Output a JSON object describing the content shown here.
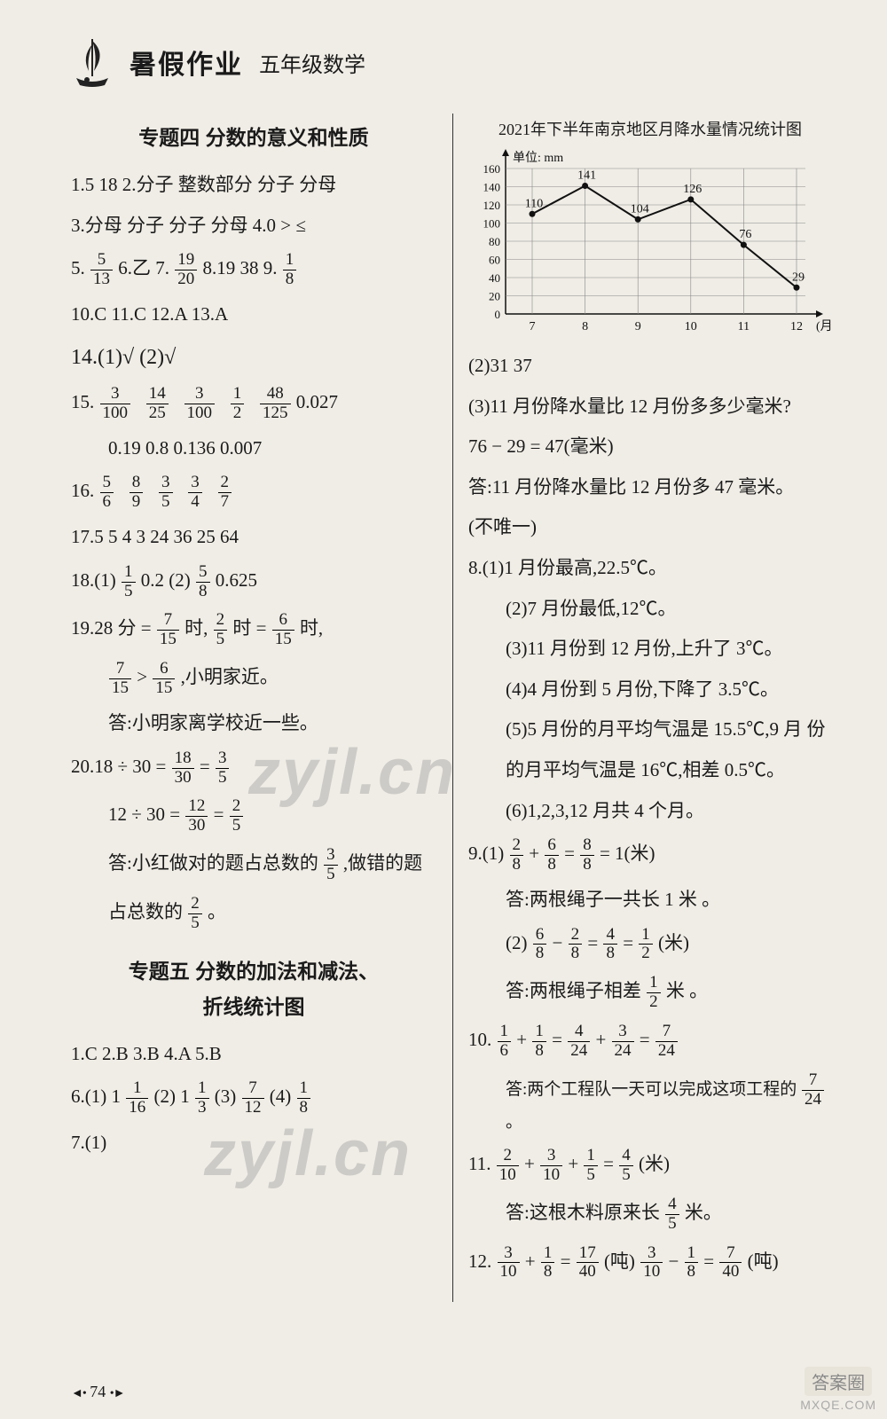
{
  "header": {
    "title_main": "暑假作业",
    "title_sub": "五年级数学"
  },
  "section4": {
    "title": "专题四  分数的意义和性质",
    "l1": "1.5  18  2.分子  整数部分  分子  分母",
    "l3": "3.分母  分子  分子  分母  4.0  >  ≤",
    "q5_pre": "5.",
    "q5_n": "5",
    "q5_d": "13",
    "q6": "  6.乙  7.",
    "q7_n": "19",
    "q7_d": "20",
    "q7_rest": "  8.19  38  9.",
    "q9_n": "1",
    "q9_d": "8",
    "l10": "10.C  11.C  12.A  13.A",
    "l14": "14.(1)√  (2)√",
    "q15_pre": "15.",
    "q15a_n": "3",
    "q15a_d": "100",
    "q15b_n": "14",
    "q15b_d": "25",
    "q15c_n": "3",
    "q15c_d": "100",
    "q15d_n": "1",
    "q15d_d": "2",
    "q15e_n": "48",
    "q15e_d": "125",
    "q15_tail": "  0.027",
    "l15b": "0.19  0.8  0.136  0.007",
    "q16_pre": "16.",
    "q16a_n": "5",
    "q16a_d": "6",
    "q16b_n": "8",
    "q16b_d": "9",
    "q16c_n": "3",
    "q16c_d": "5",
    "q16d_n": "3",
    "q16d_d": "4",
    "q16e_n": "2",
    "q16e_d": "7",
    "l17": "17.5  5  4  3  24  36  25  64",
    "q18_pre": "18.(1)",
    "q18a_n": "1",
    "q18a_d": "5",
    "q18_mid": "  0.2  (2)",
    "q18b_n": "5",
    "q18b_d": "8",
    "q18_tail": "  0.625",
    "q19_pre": "19.28 分 = ",
    "q19a_n": "7",
    "q19a_d": "15",
    "q19_mid1": "时,",
    "q19b_n": "2",
    "q19b_d": "5",
    "q19_mid2": "时 = ",
    "q19c_n": "6",
    "q19c_d": "15",
    "q19_tail": "时,",
    "q19d_n": "7",
    "q19d_d": "15",
    "q19_gt": " > ",
    "q19e_n": "6",
    "q19e_d": "15",
    "q19_close": ",小明家近。",
    "q19_ans": "答:小明家离学校近一些。",
    "q20_pre": "20.18 ÷ 30 = ",
    "q20a_n": "18",
    "q20a_d": "30",
    "q20_eq": " = ",
    "q20b_n": "3",
    "q20b_d": "5",
    "q20_pre2": "12 ÷ 30 = ",
    "q20c_n": "12",
    "q20c_d": "30",
    "q20d_n": "2",
    "q20d_d": "5",
    "q20_ans1": "答:小红做对的题占总数的",
    "q20e_n": "3",
    "q20e_d": "5",
    "q20_ans1b": ",做错的题",
    "q20_ans2": "占总数的",
    "q20f_n": "2",
    "q20f_d": "5",
    "q20_ans2b": "。"
  },
  "section5": {
    "title1": "专题五  分数的加法和减法、",
    "title2": "折线统计图",
    "l1": "1.C  2.B  3.B  4.A  5.B",
    "q6_pre": "6.(1) 1",
    "q6a_n": "1",
    "q6a_d": "16",
    "q6_b": "  (2) 1",
    "q6b_n": "1",
    "q6b_d": "3",
    "q6_c": "  (3)",
    "q6c_n": "7",
    "q6c_d": "12",
    "q6_d": "  (4)",
    "q6d_n": "1",
    "q6d_d": "8",
    "l7": "7.(1)"
  },
  "chart": {
    "title": "2021年下半年南京地区月降水量情况统计图",
    "ylabel": "单位: mm",
    "xmonths": [
      "7",
      "8",
      "9",
      "10",
      "11",
      "12"
    ],
    "xunit": "(月)",
    "values": [
      110,
      141,
      104,
      126,
      76,
      29
    ],
    "ymax": 160,
    "ystep": 20,
    "grid_color": "#888",
    "line_color": "#111",
    "bg": "#f0ede6"
  },
  "right": {
    "l2": "(2)31  37",
    "l3": "(3)11 月份降水量比 12 月份多多少毫米?",
    "l3b": "76 − 29 = 47(毫米)",
    "l3c": "答:11 月份降水量比 12 月份多 47 毫米。",
    "l3d": "(不唯一)",
    "l8a": "8.(1)1 月份最高,22.5℃。",
    "l8b": "(2)7 月份最低,12℃。",
    "l8c": "(3)11 月份到 12 月份,上升了 3℃。",
    "l8d": "(4)4 月份到 5 月份,下降了 3.5℃。",
    "l8e": "(5)5 月份的月平均气温是 15.5℃,9 月 份",
    "l8f": "的月平均气温是 16℃,相差 0.5℃。",
    "l8g": "(6)1,2,3,12 月共 4 个月。",
    "q9_pre": "9.(1)",
    "q9a_n": "2",
    "q9a_d": "8",
    "q9_p": " + ",
    "q9b_n": "6",
    "q9b_d": "8",
    "q9_e": " = ",
    "q9c_n": "8",
    "q9c_d": "8",
    "q9_out": " = 1(米)",
    "q9_ans": "答:两根绳子一共长 1 米 。",
    "q9_2pre": "(2)",
    "q9d_n": "6",
    "q9d_d": "8",
    "q9_m": " − ",
    "q9e_n": "2",
    "q9e_d": "8",
    "q9f_n": "4",
    "q9f_d": "8",
    "q9g_n": "1",
    "q9g_d": "2",
    "q9_2out": "(米)",
    "q9_2ans": "答:两根绳子相差",
    "q9h_n": "1",
    "q9h_d": "2",
    "q9_2ansb": "米 。",
    "q10_pre": "10.",
    "q10a_n": "1",
    "q10a_d": "6",
    "q10_p": " + ",
    "q10b_n": "1",
    "q10b_d": "8",
    "q10_e": " = ",
    "q10c_n": "4",
    "q10c_d": "24",
    "q10d_n": "3",
    "q10d_d": "24",
    "q10e_n": "7",
    "q10e_d": "24",
    "q10_ans": "答:两个工程队一天可以完成这项工程的",
    "q10f_n": "7",
    "q10f_d": "24",
    "q10_ansb": "。",
    "q11_pre": "11.",
    "q11a_n": "2",
    "q11a_d": "10",
    "q11b_n": "3",
    "q11b_d": "10",
    "q11c_n": "1",
    "q11c_d": "5",
    "q11d_n": "4",
    "q11d_d": "5",
    "q11_out": "(米)",
    "q11_ans": "答:这根木料原来长",
    "q11e_n": "4",
    "q11e_d": "5",
    "q11_ansb": "米。",
    "q12_pre": "12.",
    "q12a_n": "3",
    "q12a_d": "10",
    "q12b_n": "1",
    "q12b_d": "8",
    "q12c_n": "17",
    "q12c_d": "40",
    "q12_u1": "(吨)  ",
    "q12d_n": "3",
    "q12d_d": "10",
    "q12e_n": "1",
    "q12e_d": "8",
    "q12f_n": "7",
    "q12f_d": "40",
    "q12_u2": "(吨)"
  },
  "footer": {
    "page": "74"
  },
  "watermark": {
    "text": "zyjl.cn"
  },
  "badge": {
    "t1": "答案圈",
    "t2": "MXQE.COM"
  }
}
